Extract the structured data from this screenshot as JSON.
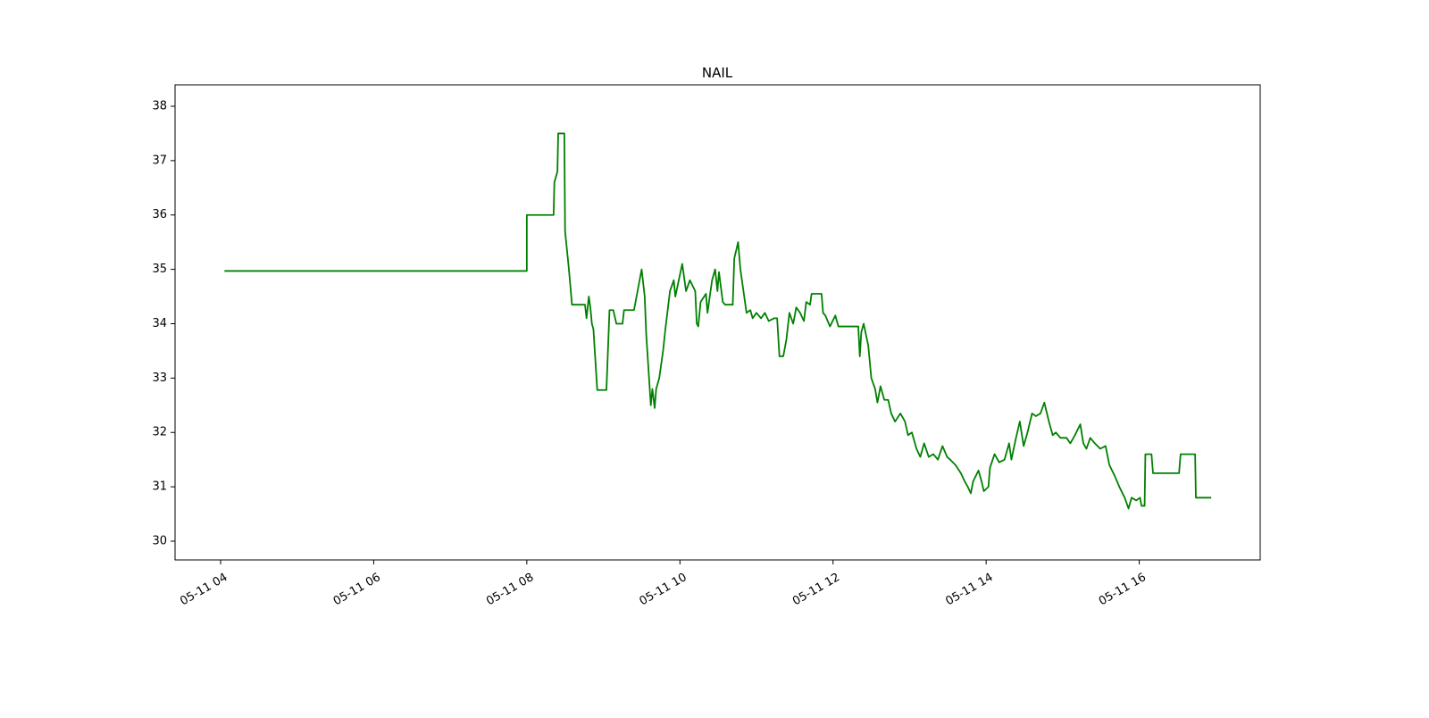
{
  "chart_data": {
    "type": "line",
    "title": "NAIL",
    "color": "#008000",
    "x": [
      4.05,
      8.0,
      8.0,
      8.35,
      8.36,
      8.4,
      8.41,
      8.49,
      8.5,
      8.55,
      8.59,
      8.76,
      8.78,
      8.81,
      8.83,
      8.85,
      8.87,
      8.92,
      9.04,
      9.08,
      9.13,
      9.17,
      9.25,
      9.27,
      9.4,
      9.5,
      9.54,
      9.56,
      9.62,
      9.64,
      9.67,
      9.69,
      9.73,
      9.78,
      9.81,
      9.87,
      9.92,
      9.94,
      10.0,
      10.03,
      10.08,
      10.13,
      10.2,
      10.22,
      10.24,
      10.27,
      10.34,
      10.36,
      10.42,
      10.46,
      10.49,
      10.51,
      10.56,
      10.59,
      10.69,
      10.71,
      10.76,
      10.79,
      10.83,
      10.87,
      10.92,
      10.95,
      11.0,
      11.06,
      11.11,
      11.16,
      11.23,
      11.27,
      11.3,
      11.35,
      11.39,
      11.43,
      11.48,
      11.52,
      11.57,
      11.62,
      11.65,
      11.7,
      11.72,
      11.85,
      11.87,
      11.9,
      11.96,
      12.03,
      12.07,
      12.33,
      12.35,
      12.37,
      12.4,
      12.46,
      12.5,
      12.55,
      12.58,
      12.62,
      12.67,
      12.72,
      12.76,
      12.81,
      12.88,
      12.94,
      12.98,
      13.03,
      13.09,
      13.14,
      13.19,
      13.25,
      13.31,
      13.37,
      13.43,
      13.49,
      13.53,
      13.6,
      13.67,
      13.72,
      13.76,
      13.8,
      13.83,
      13.9,
      13.94,
      13.97,
      14.03,
      14.05,
      14.11,
      14.17,
      14.24,
      14.3,
      14.33,
      14.39,
      14.44,
      14.49,
      14.54,
      14.6,
      14.65,
      14.71,
      14.76,
      14.82,
      14.87,
      14.91,
      14.97,
      15.05,
      15.1,
      15.16,
      15.23,
      15.27,
      15.31,
      15.36,
      15.42,
      15.49,
      15.56,
      15.61,
      15.68,
      15.74,
      15.81,
      15.86,
      15.9,
      15.96,
      16.01,
      16.03,
      16.07,
      16.08,
      16.16,
      16.18,
      16.24,
      16.52,
      16.54,
      16.73,
      16.74,
      16.94
    ],
    "values": [
      34.97,
      34.97,
      36.0,
      36.0,
      36.6,
      36.8,
      37.5,
      37.5,
      35.7,
      35.0,
      34.35,
      34.35,
      34.1,
      34.5,
      34.3,
      34.0,
      33.9,
      32.78,
      32.78,
      34.25,
      34.25,
      34.0,
      34.0,
      34.25,
      34.25,
      35.0,
      34.5,
      33.8,
      32.5,
      32.8,
      32.45,
      32.8,
      33.0,
      33.5,
      33.9,
      34.6,
      34.8,
      34.5,
      34.9,
      35.1,
      34.6,
      34.8,
      34.6,
      34.0,
      33.95,
      34.4,
      34.55,
      34.2,
      34.8,
      35.0,
      34.6,
      34.95,
      34.4,
      34.35,
      34.35,
      35.2,
      35.5,
      35.0,
      34.6,
      34.2,
      34.25,
      34.1,
      34.2,
      34.1,
      34.2,
      34.05,
      34.1,
      34.1,
      33.4,
      33.4,
      33.7,
      34.2,
      34.0,
      34.3,
      34.2,
      34.05,
      34.4,
      34.35,
      34.55,
      34.55,
      34.2,
      34.15,
      33.95,
      34.15,
      33.95,
      33.95,
      33.4,
      33.85,
      34.0,
      33.6,
      33.0,
      32.8,
      32.55,
      32.85,
      32.6,
      32.6,
      32.35,
      32.2,
      32.35,
      32.2,
      31.95,
      32.0,
      31.7,
      31.55,
      31.8,
      31.55,
      31.6,
      31.5,
      31.75,
      31.55,
      31.5,
      31.4,
      31.25,
      31.1,
      31.0,
      30.88,
      31.1,
      31.3,
      31.1,
      30.92,
      31.0,
      31.35,
      31.6,
      31.45,
      31.5,
      31.8,
      31.5,
      31.9,
      32.2,
      31.75,
      32.0,
      32.35,
      32.3,
      32.35,
      32.55,
      32.2,
      31.95,
      32.0,
      31.9,
      31.9,
      31.8,
      31.95,
      32.15,
      31.8,
      31.7,
      31.9,
      31.8,
      31.7,
      31.75,
      31.4,
      31.2,
      31.0,
      30.8,
      30.6,
      30.8,
      30.75,
      30.8,
      30.65,
      30.65,
      31.6,
      31.6,
      31.25,
      31.25,
      31.25,
      31.6,
      31.6,
      30.8,
      30.8
    ],
    "xlim": [
      3.405,
      17.58
    ],
    "ylim": [
      29.655,
      38.394
    ],
    "xticks": [
      {
        "value": 4,
        "label": "05-11 04"
      },
      {
        "value": 6,
        "label": "05-11 06"
      },
      {
        "value": 8,
        "label": "05-11 08"
      },
      {
        "value": 10,
        "label": "05-11 10"
      },
      {
        "value": 12,
        "label": "05-11 12"
      },
      {
        "value": 14,
        "label": "05-11 14"
      },
      {
        "value": 16,
        "label": "05-11 16"
      }
    ],
    "yticks": [
      30,
      31,
      32,
      33,
      34,
      35,
      36,
      37,
      38
    ]
  }
}
